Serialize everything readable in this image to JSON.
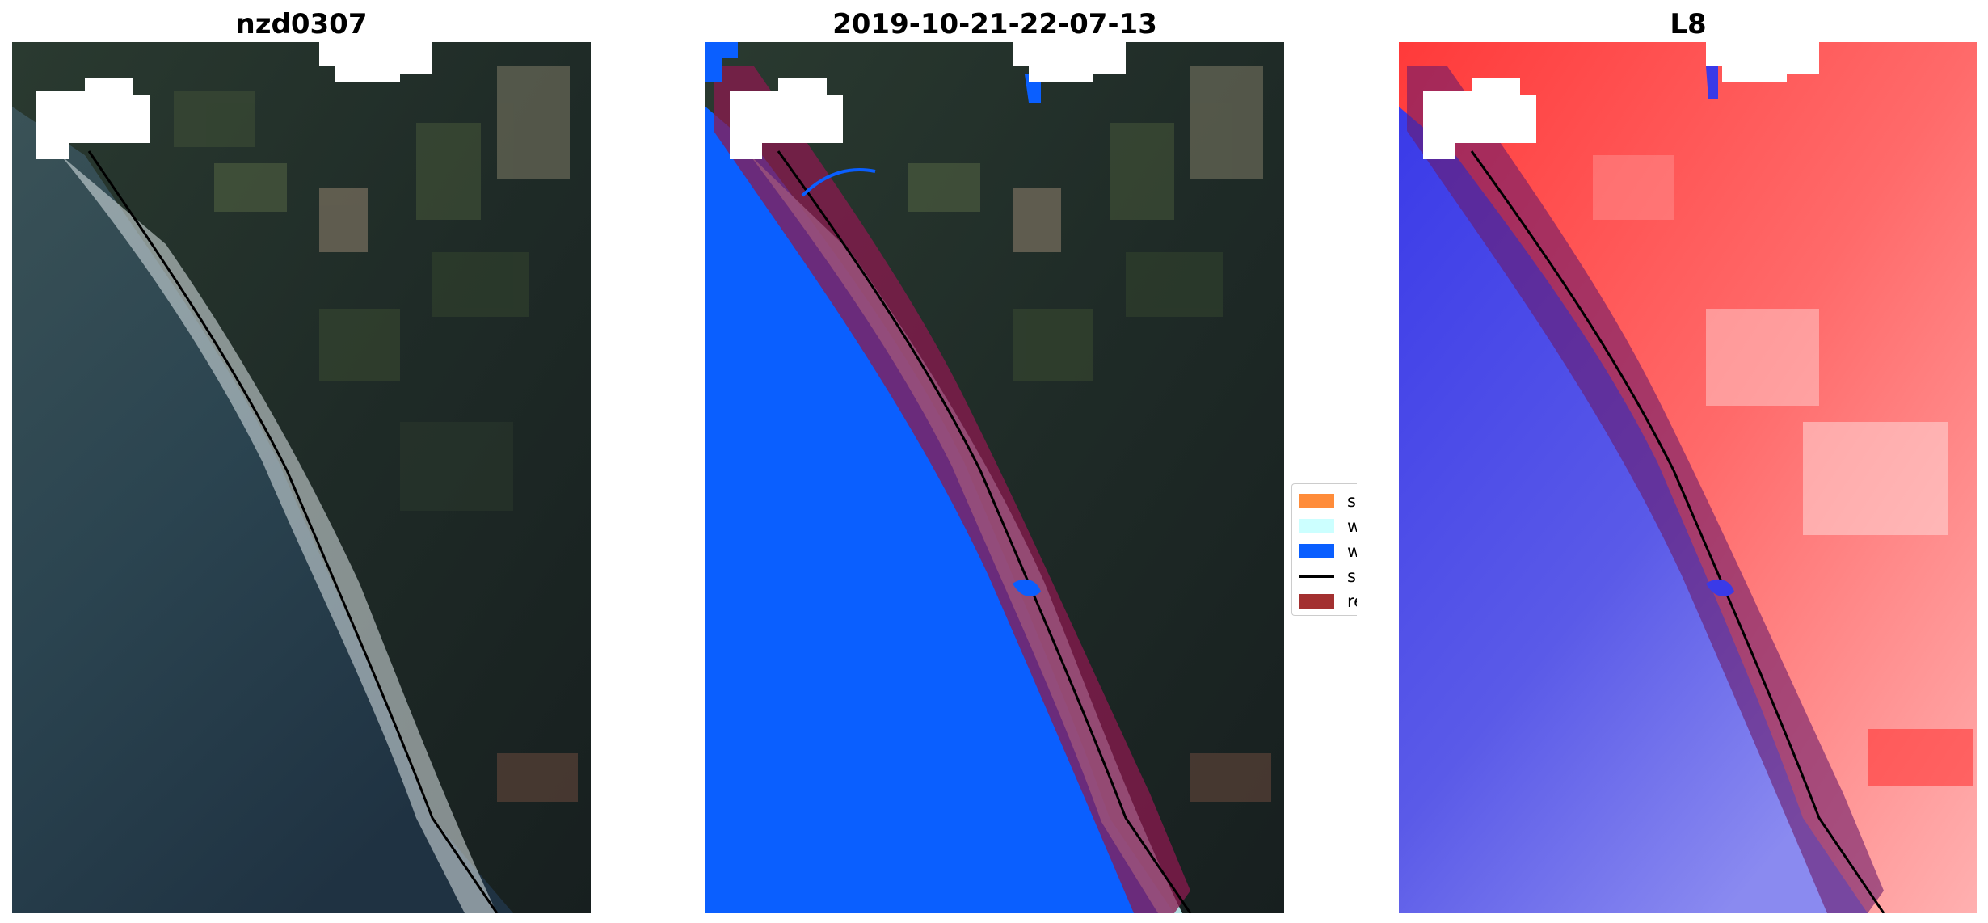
{
  "panels": [
    {
      "title": "nzd0307",
      "view": "rgb-satellite-image"
    },
    {
      "title": "2019-10-21-22-07-13",
      "view": "classified-overlay"
    },
    {
      "title": "L8",
      "view": "water-index-map"
    }
  ],
  "legend": {
    "items": [
      {
        "label": "sand",
        "color": "#ff8c3a",
        "kind": "patch"
      },
      {
        "label": "whitew",
        "color": "#ccffff",
        "kind": "patch"
      },
      {
        "label": "water",
        "color": "#0a5fff",
        "kind": "patch"
      },
      {
        "label": "shorel",
        "color": "#000000",
        "kind": "line"
      },
      {
        "label": "referen",
        "color": "#a33030",
        "kind": "patch"
      }
    ]
  },
  "colors": {
    "sea_rgb": "#28424d",
    "land_rgb": "#1e2a27",
    "water_class": "#0a5fff",
    "whitewater_class": "#c9fbff",
    "reference_buffer": "#8b1a4f",
    "index_land": "#ff4a4a",
    "index_water": "#4a4ae6",
    "cloud_mask": "#ffffff",
    "shoreline": "#000000"
  }
}
